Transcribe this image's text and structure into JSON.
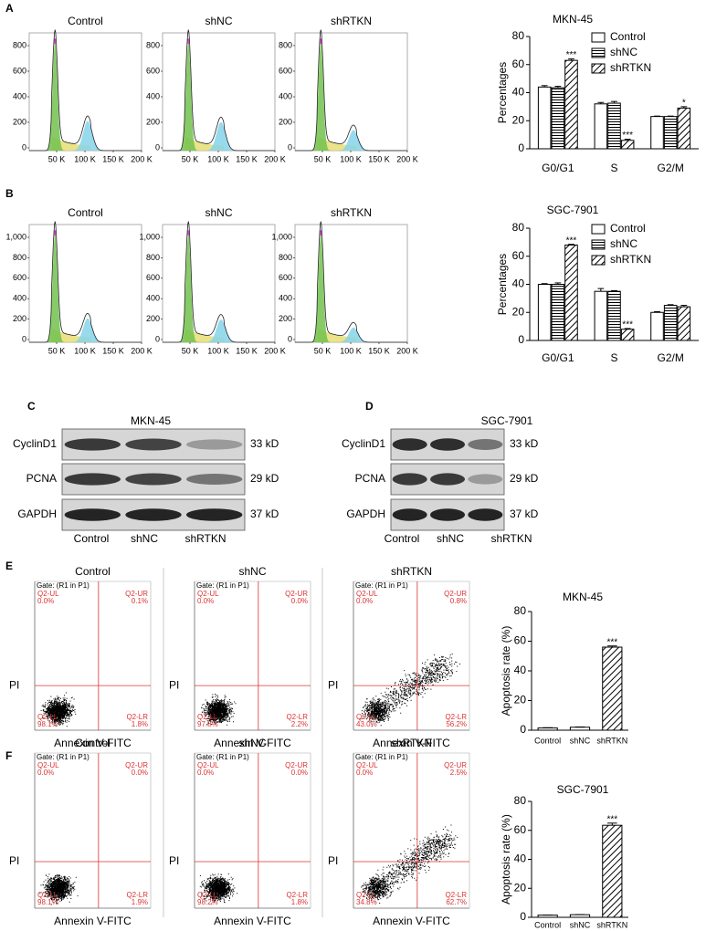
{
  "figure": {
    "panel_labels": [
      "A",
      "B",
      "C",
      "D",
      "E",
      "F"
    ],
    "cell_cycle_rows": [
      {
        "titles": [
          "Control",
          "shNC",
          "shRTKN"
        ],
        "yticks": [
          "0",
          "200",
          "400",
          "600",
          "800"
        ],
        "xticks": [
          "50 K",
          "100 K",
          "150 K",
          "200 K"
        ]
      },
      {
        "titles": [
          "Control",
          "shNC",
          "shRTKN"
        ],
        "yticks": [
          "0",
          "200",
          "400",
          "600",
          "800",
          "1,000"
        ],
        "xticks": [
          "50 K",
          "100 K",
          "150 K",
          "200 K"
        ]
      }
    ],
    "blots": [
      {
        "title": "MKN-45",
        "proteins": [
          "CyclinD1",
          "PCNA",
          "GAPDH"
        ],
        "sizes": [
          "33 kD",
          "29 kD",
          "37 kD"
        ],
        "lanes": [
          "Control",
          "shNC",
          "shRTKN"
        ]
      },
      {
        "title": "SGC-7901",
        "proteins": [
          "CyclinD1",
          "PCNA",
          "GAPDH"
        ],
        "sizes": [
          "33 kD",
          "29 kD",
          "37 kD"
        ],
        "lanes": [
          "Control",
          "shNC",
          "shRTKN"
        ]
      }
    ],
    "apoptosis_rows": [
      {
        "plots": [
          {
            "title": "Control",
            "gate": "Gate: (R1 in P1)",
            "y_label": "PI",
            "x_label": "Annexin V-FITC",
            "quadrants": [
              {
                "name": "Q2-UL",
                "value": "0.0%"
              },
              {
                "name": "Q2-UR",
                "value": "0.1%"
              },
              {
                "name": "Q2-LL",
                "value": "98.1%"
              },
              {
                "name": "Q2-LR",
                "value": "1.8%"
              }
            ]
          },
          {
            "title": "shNC",
            "gate": "Gate: (R1 in P1)",
            "y_label": "PI",
            "x_label": "Annexin V-FITC",
            "quadrants": [
              {
                "name": "Q2-UL",
                "value": "0.0%"
              },
              {
                "name": "Q2-UR",
                "value": "0.0%"
              },
              {
                "name": "Q2-LL",
                "value": "97.8%"
              },
              {
                "name": "Q2-LR",
                "value": "2.2%"
              }
            ]
          },
          {
            "title": "shRTKN",
            "gate": "Gate: (R1 in P1)",
            "y_label": "PI",
            "x_label": "Annexin V-FITC",
            "quadrants": [
              {
                "name": "Q2-UL",
                "value": "0.0%"
              },
              {
                "name": "Q2-UR",
                "value": "0.8%"
              },
              {
                "name": "Q2-LL",
                "value": "43.0%"
              },
              {
                "name": "Q2-LR",
                "value": "56.2%"
              }
            ]
          }
        ]
      },
      {
        "plots": [
          {
            "title": "Control",
            "gate": "Gate: (R1 in P1)",
            "y_label": "PI",
            "x_label": "Annexin V-FITC",
            "quadrants": [
              {
                "name": "Q2-UL",
                "value": "0.0%"
              },
              {
                "name": "Q2-UR",
                "value": "0.0%"
              },
              {
                "name": "Q2-LL",
                "value": "98.1%"
              },
              {
                "name": "Q2-LR",
                "value": "1.9%"
              }
            ]
          },
          {
            "title": "shNC",
            "gate": "Gate: (R1 in P1)",
            "y_label": "PI",
            "x_label": "Annexin V-FITC",
            "quadrants": [
              {
                "name": "Q2-UL",
                "value": "0.0%"
              },
              {
                "name": "Q2-UR",
                "value": "0.0%"
              },
              {
                "name": "Q2-LL",
                "value": "98.2%"
              },
              {
                "name": "Q2-LR",
                "value": "1.8%"
              }
            ]
          },
          {
            "title": "shRTKN",
            "gate": "Gate: (R1 in P1)",
            "y_label": "PI",
            "x_label": "Annexin V-FITC",
            "quadrants": [
              {
                "name": "Q2-UL",
                "value": "0.0%"
              },
              {
                "name": "Q2-UR",
                "value": "2.5%"
              },
              {
                "name": "Q2-LL",
                "value": "34.8%"
              },
              {
                "name": "Q2-LR",
                "value": "62.7%"
              }
            ]
          }
        ]
      }
    ]
  },
  "chart_data": [
    {
      "type": "bar",
      "title": "MKN-45",
      "y_label": "Percentages",
      "categories": [
        "G0/G1",
        "S",
        "G2/M"
      ],
      "series": [
        {
          "name": "Control",
          "pattern": "none",
          "values": [
            44,
            32,
            23
          ],
          "errors": [
            1,
            1,
            0.3
          ]
        },
        {
          "name": "shNC",
          "pattern": "horizontal",
          "values": [
            43.5,
            32.5,
            23
          ],
          "errors": [
            1,
            1.2,
            0.3
          ]
        },
        {
          "name": "shRTKN",
          "pattern": "diagonal",
          "values": [
            63,
            6,
            29
          ],
          "errors": [
            1,
            0.8,
            1
          ]
        }
      ],
      "annotations": [
        "***",
        "***",
        "*"
      ],
      "ylim": [
        0,
        80
      ],
      "yticks": [
        0,
        20,
        40,
        60,
        80
      ],
      "legend": "top-right"
    },
    {
      "type": "bar",
      "title": "SGC-7901",
      "y_label": "Percentages",
      "categories": [
        "G0/G1",
        "S",
        "G2/M"
      ],
      "series": [
        {
          "name": "Control",
          "pattern": "none",
          "values": [
            40,
            35,
            20
          ],
          "errors": [
            0.5,
            2,
            0.5
          ]
        },
        {
          "name": "shNC",
          "pattern": "horizontal",
          "values": [
            40,
            35,
            25
          ],
          "errors": [
            1,
            0.5,
            0.5
          ]
        },
        {
          "name": "shRTKN",
          "pattern": "diagonal",
          "values": [
            68,
            8,
            24
          ],
          "errors": [
            0.5,
            0.5,
            1
          ]
        }
      ],
      "annotations": [
        "***",
        "***",
        null
      ],
      "ylim": [
        0,
        80
      ],
      "yticks": [
        0,
        20,
        40,
        60,
        80
      ],
      "legend": "top-right"
    },
    {
      "type": "bar",
      "title": "MKN-45",
      "y_label": "Apoptosis rate (%)",
      "categories": [
        "Control",
        "shNC",
        "shRTKN"
      ],
      "values": [
        1.5,
        2,
        56
      ],
      "errors": [
        0.2,
        0.2,
        0.8
      ],
      "patterns": [
        "none",
        "none",
        "diagonal"
      ],
      "annotations": [
        null,
        null,
        "***"
      ],
      "ylim": [
        0,
        80
      ],
      "yticks": [
        0,
        20,
        40,
        60,
        80
      ]
    },
    {
      "type": "bar",
      "title": "SGC-7901",
      "y_label": "Apoptosis rate (%)",
      "categories": [
        "Control",
        "shNC",
        "shRTKN"
      ],
      "values": [
        1.5,
        1.8,
        63.5
      ],
      "errors": [
        0.1,
        0.1,
        1.5
      ],
      "patterns": [
        "none",
        "none",
        "diagonal"
      ],
      "annotations": [
        null,
        null,
        "***"
      ],
      "ylim": [
        0,
        80
      ],
      "yticks": [
        0,
        20,
        40,
        60,
        80
      ]
    }
  ]
}
